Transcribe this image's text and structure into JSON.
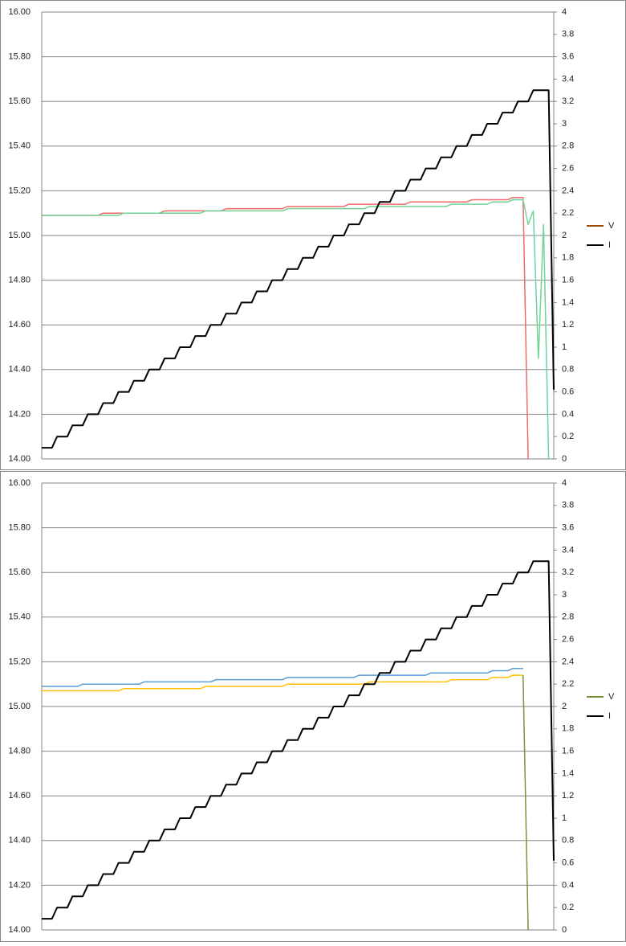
{
  "chart_data": [
    {
      "type": "line",
      "ylim": [
        14,
        16
      ],
      "y2lim": [
        0,
        4
      ],
      "grid": true,
      "legend_position": "right",
      "yticks": [
        {
          "value": 14,
          "label": "14.00"
        },
        {
          "value": 14.2,
          "label": "14.20"
        },
        {
          "value": 14.4,
          "label": "14.40"
        },
        {
          "value": 14.6,
          "label": "14.60"
        },
        {
          "value": 14.8,
          "label": "14.80"
        },
        {
          "value": 15,
          "label": "15.00"
        },
        {
          "value": 15.2,
          "label": "15.20"
        },
        {
          "value": 15.4,
          "label": "15.40"
        },
        {
          "value": 15.6,
          "label": "15.60"
        },
        {
          "value": 15.8,
          "label": "15.80"
        },
        {
          "value": 16,
          "label": "16.00"
        }
      ],
      "y2ticks": [
        0,
        0.2,
        0.4,
        0.6,
        0.8,
        1,
        1.2,
        1.4,
        1.6,
        1.8,
        2,
        2.2,
        2.4,
        2.6,
        2.8,
        3,
        3.2,
        3.4,
        3.6,
        3.8,
        4
      ],
      "legend": [
        {
          "name": "V",
          "color": "#984807"
        },
        {
          "name": "I",
          "color": "#000000"
        }
      ],
      "series": [
        {
          "color": "#f06a6a",
          "values": [
            15.09,
            15.09,
            15.09,
            15.09,
            15.09,
            15.09,
            15.09,
            15.09,
            15.09,
            15.09,
            15.09,
            15.09,
            15.1,
            15.1,
            15.1,
            15.1,
            15.1,
            15.1,
            15.1,
            15.1,
            15.1,
            15.1,
            15.1,
            15.1,
            15.11,
            15.11,
            15.11,
            15.11,
            15.11,
            15.11,
            15.11,
            15.11,
            15.11,
            15.11,
            15.11,
            15.11,
            15.12,
            15.12,
            15.12,
            15.12,
            15.12,
            15.12,
            15.12,
            15.12,
            15.12,
            15.12,
            15.12,
            15.12,
            15.13,
            15.13,
            15.13,
            15.13,
            15.13,
            15.13,
            15.13,
            15.13,
            15.13,
            15.13,
            15.13,
            15.13,
            15.14,
            15.14,
            15.14,
            15.14,
            15.14,
            15.14,
            15.14,
            15.14,
            15.14,
            15.14,
            15.14,
            15.14,
            15.15,
            15.15,
            15.15,
            15.15,
            15.15,
            15.15,
            15.15,
            15.15,
            15.15,
            15.15,
            15.15,
            15.15,
            15.16,
            15.16,
            15.16,
            15.16,
            15.16,
            15.16,
            15.16,
            15.16,
            15.17,
            15.17,
            15.17,
            14,
            null,
            null,
            null,
            null,
            null
          ]
        },
        {
          "color": "#6fd49a",
          "values": [
            15.09,
            15.09,
            15.09,
            15.09,
            15.09,
            15.09,
            15.09,
            15.09,
            15.09,
            15.09,
            15.09,
            15.09,
            15.09,
            15.09,
            15.09,
            15.09,
            15.1,
            15.1,
            15.1,
            15.1,
            15.1,
            15.1,
            15.1,
            15.1,
            15.1,
            15.1,
            15.1,
            15.1,
            15.1,
            15.1,
            15.1,
            15.1,
            15.11,
            15.11,
            15.11,
            15.11,
            15.11,
            15.11,
            15.11,
            15.11,
            15.11,
            15.11,
            15.11,
            15.11,
            15.11,
            15.11,
            15.11,
            15.11,
            15.12,
            15.12,
            15.12,
            15.12,
            15.12,
            15.12,
            15.12,
            15.12,
            15.12,
            15.12,
            15.12,
            15.12,
            15.12,
            15.12,
            15.12,
            15.12,
            15.13,
            15.13,
            15.13,
            15.13,
            15.13,
            15.13,
            15.13,
            15.13,
            15.13,
            15.13,
            15.13,
            15.13,
            15.13,
            15.13,
            15.13,
            15.13,
            15.14,
            15.14,
            15.14,
            15.14,
            15.14,
            15.14,
            15.14,
            15.14,
            15.15,
            15.15,
            15.15,
            15.15,
            15.16,
            15.16,
            15.16,
            15.05,
            15.11,
            14.45,
            15.05,
            14,
            null
          ]
        },
        {
          "color": "#000000",
          "axis": "y2",
          "values": [
            0.1,
            0.1,
            0.1,
            0.2,
            0.2,
            0.2,
            0.3,
            0.3,
            0.3,
            0.4,
            0.4,
            0.4,
            0.5,
            0.5,
            0.5,
            0.6,
            0.6,
            0.6,
            0.7,
            0.7,
            0.7,
            0.8,
            0.8,
            0.8,
            0.9,
            0.9,
            0.9,
            1,
            1,
            1,
            1.1,
            1.1,
            1.1,
            1.2,
            1.2,
            1.2,
            1.3,
            1.3,
            1.3,
            1.4,
            1.4,
            1.4,
            1.5,
            1.5,
            1.5,
            1.6,
            1.6,
            1.6,
            1.7,
            1.7,
            1.7,
            1.8,
            1.8,
            1.8,
            1.9,
            1.9,
            1.9,
            2,
            2,
            2,
            2.1,
            2.1,
            2.1,
            2.2,
            2.2,
            2.2,
            2.3,
            2.3,
            2.3,
            2.4,
            2.4,
            2.4,
            2.5,
            2.5,
            2.5,
            2.6,
            2.6,
            2.6,
            2.7,
            2.7,
            2.7,
            2.8,
            2.8,
            2.8,
            2.9,
            2.9,
            2.9,
            3,
            3,
            3,
            3.1,
            3.1,
            3.1,
            3.2,
            3.2,
            3.2,
            3.3,
            3.3,
            3.3,
            3.3,
            0.62
          ]
        }
      ]
    },
    {
      "type": "line",
      "ylim": [
        14,
        16
      ],
      "y2lim": [
        0,
        4
      ],
      "grid": true,
      "legend_position": "right",
      "yticks": [
        {
          "value": 14,
          "label": "14.00"
        },
        {
          "value": 14.2,
          "label": "14.20"
        },
        {
          "value": 14.4,
          "label": "14.40"
        },
        {
          "value": 14.6,
          "label": "14.60"
        },
        {
          "value": 14.8,
          "label": "14.80"
        },
        {
          "value": 15,
          "label": "15.00"
        },
        {
          "value": 15.2,
          "label": "15.20"
        },
        {
          "value": 15.4,
          "label": "15.40"
        },
        {
          "value": 15.6,
          "label": "15.60"
        },
        {
          "value": 15.8,
          "label": "15.80"
        },
        {
          "value": 16,
          "label": "16.00"
        }
      ],
      "y2ticks": [
        0,
        0.2,
        0.4,
        0.6,
        0.8,
        1,
        1.2,
        1.4,
        1.6,
        1.8,
        2,
        2.2,
        2.4,
        2.6,
        2.8,
        3,
        3.2,
        3.4,
        3.6,
        3.8,
        4
      ],
      "legend": [
        {
          "name": "V",
          "color": "#77933c"
        },
        {
          "name": "I",
          "color": "#000000"
        }
      ],
      "series": [
        {
          "color": "#ffc000",
          "values": [
            15.07,
            15.07,
            15.07,
            15.07,
            15.07,
            15.07,
            15.07,
            15.07,
            15.07,
            15.07,
            15.07,
            15.07,
            15.07,
            15.07,
            15.07,
            15.07,
            15.08,
            15.08,
            15.08,
            15.08,
            15.08,
            15.08,
            15.08,
            15.08,
            15.08,
            15.08,
            15.08,
            15.08,
            15.08,
            15.08,
            15.08,
            15.08,
            15.09,
            15.09,
            15.09,
            15.09,
            15.09,
            15.09,
            15.09,
            15.09,
            15.09,
            15.09,
            15.09,
            15.09,
            15.09,
            15.09,
            15.09,
            15.09,
            15.1,
            15.1,
            15.1,
            15.1,
            15.1,
            15.1,
            15.1,
            15.1,
            15.1,
            15.1,
            15.1,
            15.1,
            15.1,
            15.1,
            15.1,
            15.1,
            15.11,
            15.11,
            15.11,
            15.11,
            15.11,
            15.11,
            15.11,
            15.11,
            15.11,
            15.11,
            15.11,
            15.11,
            15.11,
            15.11,
            15.11,
            15.11,
            15.12,
            15.12,
            15.12,
            15.12,
            15.12,
            15.12,
            15.12,
            15.12,
            15.13,
            15.13,
            15.13,
            15.13,
            15.14,
            15.14,
            15.14,
            null,
            null,
            null,
            null,
            null,
            null
          ]
        },
        {
          "color": "#5b9bd5",
          "values": [
            15.09,
            15.09,
            15.09,
            15.09,
            15.09,
            15.09,
            15.09,
            15.09,
            15.1,
            15.1,
            15.1,
            15.1,
            15.1,
            15.1,
            15.1,
            15.1,
            15.1,
            15.1,
            15.1,
            15.1,
            15.11,
            15.11,
            15.11,
            15.11,
            15.11,
            15.11,
            15.11,
            15.11,
            15.11,
            15.11,
            15.11,
            15.11,
            15.11,
            15.11,
            15.12,
            15.12,
            15.12,
            15.12,
            15.12,
            15.12,
            15.12,
            15.12,
            15.12,
            15.12,
            15.12,
            15.12,
            15.12,
            15.12,
            15.13,
            15.13,
            15.13,
            15.13,
            15.13,
            15.13,
            15.13,
            15.13,
            15.13,
            15.13,
            15.13,
            15.13,
            15.13,
            15.13,
            15.14,
            15.14,
            15.14,
            15.14,
            15.14,
            15.14,
            15.14,
            15.14,
            15.14,
            15.14,
            15.14,
            15.14,
            15.14,
            15.14,
            15.15,
            15.15,
            15.15,
            15.15,
            15.15,
            15.15,
            15.15,
            15.15,
            15.15,
            15.15,
            15.15,
            15.15,
            15.16,
            15.16,
            15.16,
            15.16,
            15.17,
            15.17,
            15.17,
            null,
            null,
            null,
            null,
            null,
            null
          ]
        },
        {
          "color": "#77933c",
          "values": [
            null,
            null,
            null,
            null,
            null,
            null,
            null,
            null,
            null,
            null,
            null,
            null,
            null,
            null,
            null,
            null,
            null,
            null,
            null,
            null,
            null,
            null,
            null,
            null,
            null,
            null,
            null,
            null,
            null,
            null,
            null,
            null,
            null,
            null,
            null,
            null,
            null,
            null,
            null,
            null,
            null,
            null,
            null,
            null,
            null,
            null,
            null,
            null,
            null,
            null,
            null,
            null,
            null,
            null,
            null,
            null,
            null,
            null,
            null,
            null,
            null,
            null,
            null,
            null,
            null,
            null,
            null,
            null,
            null,
            null,
            null,
            null,
            null,
            null,
            null,
            null,
            null,
            null,
            null,
            null,
            null,
            null,
            null,
            null,
            null,
            null,
            null,
            null,
            null,
            null,
            null,
            null,
            null,
            null,
            15.14,
            14,
            null,
            null,
            null,
            null,
            null
          ]
        },
        {
          "color": "#000000",
          "axis": "y2",
          "values": [
            0.1,
            0.1,
            0.1,
            0.2,
            0.2,
            0.2,
            0.3,
            0.3,
            0.3,
            0.4,
            0.4,
            0.4,
            0.5,
            0.5,
            0.5,
            0.6,
            0.6,
            0.6,
            0.7,
            0.7,
            0.7,
            0.8,
            0.8,
            0.8,
            0.9,
            0.9,
            0.9,
            1,
            1,
            1,
            1.1,
            1.1,
            1.1,
            1.2,
            1.2,
            1.2,
            1.3,
            1.3,
            1.3,
            1.4,
            1.4,
            1.4,
            1.5,
            1.5,
            1.5,
            1.6,
            1.6,
            1.6,
            1.7,
            1.7,
            1.7,
            1.8,
            1.8,
            1.8,
            1.9,
            1.9,
            1.9,
            2,
            2,
            2,
            2.1,
            2.1,
            2.1,
            2.2,
            2.2,
            2.2,
            2.3,
            2.3,
            2.3,
            2.4,
            2.4,
            2.4,
            2.5,
            2.5,
            2.5,
            2.6,
            2.6,
            2.6,
            2.7,
            2.7,
            2.7,
            2.8,
            2.8,
            2.8,
            2.9,
            2.9,
            2.9,
            3,
            3,
            3,
            3.1,
            3.1,
            3.1,
            3.2,
            3.2,
            3.2,
            3.3,
            3.3,
            3.3,
            3.3,
            0.62
          ]
        }
      ]
    }
  ]
}
